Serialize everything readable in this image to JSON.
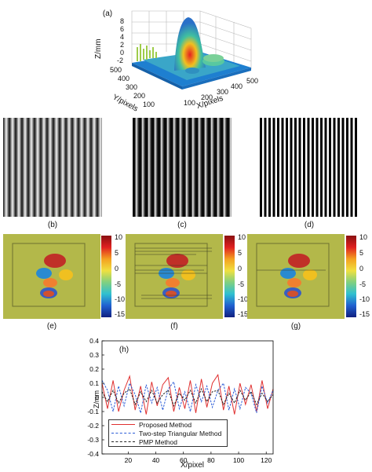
{
  "panel_a": {
    "label": "(a)",
    "z_label": "Z/mm",
    "y_label": "Y/pixels",
    "x_label": "X/pixels",
    "z_ticks": [
      "8",
      "6",
      "4",
      "2",
      "0",
      "-2"
    ],
    "y_ticks": [
      "500",
      "400",
      "300",
      "200",
      "100"
    ],
    "x_ticks": [
      "100",
      "200",
      "300",
      "400",
      "500"
    ]
  },
  "fringe_labels": [
    "(b)",
    "(c)",
    "(d)"
  ],
  "colorbar_ticks": [
    "10",
    "5",
    "0",
    "-5",
    "-10",
    "-15"
  ],
  "error_labels": [
    "(e)",
    "(f)",
    "(g)"
  ],
  "chart_data": {
    "type": "line",
    "panel_label": "(h)",
    "title": "",
    "xlabel": "X/pixel",
    "ylabel": "Z/mm",
    "xlim": [
      1,
      125
    ],
    "ylim": [
      -0.4,
      0.4
    ],
    "xticks": [
      "20",
      "40",
      "60",
      "80",
      "100",
      "120"
    ],
    "yticks": [
      "0.4",
      "0.3",
      "0.2",
      "0.1",
      "0",
      "-0.1",
      "-0.2",
      "-0.3",
      "-0.4"
    ],
    "legend_position": "bottom-left",
    "x": [
      1,
      5,
      9,
      13,
      17,
      21,
      25,
      29,
      33,
      37,
      41,
      45,
      49,
      53,
      57,
      61,
      65,
      69,
      73,
      77,
      81,
      85,
      89,
      93,
      97,
      101,
      105,
      109,
      113,
      117,
      121,
      125
    ],
    "series": [
      {
        "name": "Proposed Method",
        "color": "#e03030",
        "style": "solid",
        "values": [
          0.1,
          -0.08,
          0.12,
          -0.1,
          0.05,
          0.15,
          -0.09,
          0.08,
          -0.12,
          0.11,
          -0.06,
          0.09,
          0.14,
          -0.1,
          0.07,
          -0.08,
          0.12,
          -0.11,
          0.13,
          -0.07,
          0.1,
          0.16,
          -0.09,
          0.08,
          -0.12,
          0.1,
          -0.05,
          0.09,
          -0.1,
          0.12,
          -0.08,
          0.06
        ]
      },
      {
        "name": "Two-step Triangular Method",
        "color": "#2a5bd7",
        "style": "dashed",
        "values": [
          0.12,
          0.05,
          -0.1,
          0.08,
          -0.06,
          0.1,
          0.02,
          -0.11,
          0.09,
          -0.04,
          0.07,
          -0.09,
          0.06,
          0.11,
          -0.08,
          0.04,
          -0.1,
          0.09,
          -0.03,
          0.08,
          -0.07,
          0.05,
          0.1,
          -0.09,
          0.06,
          -0.08,
          0.07,
          0.03,
          -0.11,
          0.08,
          -0.04,
          0.05
        ]
      },
      {
        "name": "PMP Method",
        "color": "#222222",
        "style": "dashed",
        "values": [
          0.04,
          -0.03,
          0.05,
          -0.04,
          0.03,
          0.06,
          -0.05,
          0.04,
          -0.03,
          0.05,
          -0.04,
          0.02,
          0.05,
          -0.06,
          0.03,
          -0.02,
          0.05,
          -0.04,
          0.06,
          -0.03,
          0.04,
          0.05,
          -0.05,
          0.03,
          -0.04,
          0.05,
          -0.02,
          0.04,
          -0.05,
          0.03,
          -0.03,
          0.02
        ]
      }
    ]
  }
}
